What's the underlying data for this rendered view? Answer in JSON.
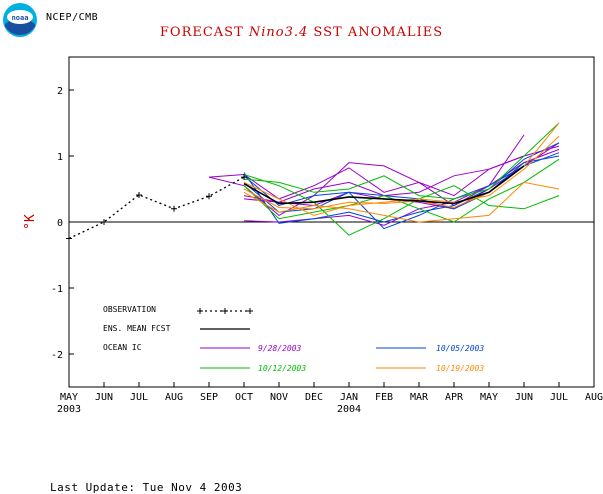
{
  "header": {
    "agency_label": "NCEP/CMB",
    "logo_text": "noaa"
  },
  "title": {
    "prefix": "FORECAST ",
    "italic": "Nino3.4",
    "suffix": " SST ANOMALIES"
  },
  "footer": {
    "last_update": "Last Update: Tue Nov 4 2003"
  },
  "colors": {
    "title": "#cc0000",
    "ylabel": "#cc0000",
    "observation": "#000000",
    "ens_mean": "#000000",
    "ic_0928": "#9900cc",
    "ic_1005": "#0044dd",
    "ic_1012": "#00bb00",
    "ic_1019": "#ff8800"
  },
  "chart_data": {
    "type": "line",
    "title": "FORECAST Nino3.4 SST ANOMALIES",
    "ylabel": "°K",
    "xlabel": "",
    "categories": [
      "MAY",
      "JUN",
      "JUL",
      "AUG",
      "SEP",
      "OCT",
      "NOV",
      "DEC",
      "JAN",
      "FEB",
      "MAR",
      "APR",
      "MAY",
      "JUN",
      "JUL",
      "AUG"
    ],
    "year_labels": [
      {
        "index": 0,
        "label": "2003"
      },
      {
        "index": 8,
        "label": "2004"
      }
    ],
    "ylim": [
      -2.5,
      2.5
    ],
    "yticks": [
      -2,
      -1,
      0,
      1,
      2
    ],
    "ytick_labels": [
      "-2",
      "-1",
      "0",
      "1",
      "2"
    ],
    "zero_line": true,
    "grid": false,
    "legend": {
      "placement": "bottom-left",
      "entries": [
        {
          "label": "OBSERVATION",
          "style": "dotted-cross"
        },
        {
          "label": "ENS. MEAN FCST",
          "style": "solid"
        },
        {
          "label": "OCEAN IC",
          "style": "header"
        },
        {
          "label": "9/28/2003",
          "group": "ic_0928"
        },
        {
          "label": "10/05/2003",
          "group": "ic_1005"
        },
        {
          "label": "10/12/2003",
          "group": "ic_1012"
        },
        {
          "label": "10/19/2003",
          "group": "ic_1019"
        }
      ]
    },
    "observation": {
      "x": [
        0,
        1,
        2,
        3,
        4,
        5
      ],
      "values": [
        -0.25,
        0.0,
        0.41,
        0.2,
        0.39,
        0.68
      ]
    },
    "ens_mean": {
      "x": [
        5,
        6,
        7,
        8,
        9,
        10,
        11,
        12,
        13
      ],
      "values": [
        0.58,
        0.28,
        0.3,
        0.38,
        0.35,
        0.32,
        0.28,
        0.45,
        0.85
      ]
    },
    "members": [
      {
        "group": "ic_0928",
        "x": [
          4,
          5,
          6,
          7,
          8,
          9,
          10,
          11,
          12,
          13
        ],
        "values": [
          0.68,
          0.72,
          0.35,
          0.55,
          0.82,
          0.45,
          0.6,
          0.25,
          0.55,
          1.32
        ]
      },
      {
        "group": "ic_0928",
        "x": [
          4,
          5,
          6,
          7,
          8,
          9,
          10,
          11,
          12,
          13
        ],
        "values": [
          0.68,
          0.55,
          0.1,
          0.4,
          0.9,
          0.85,
          0.6,
          0.4,
          0.8,
          1.0
        ]
      },
      {
        "group": "ic_0928",
        "x": [
          5,
          6,
          7,
          8,
          9,
          10,
          11,
          12,
          13,
          14
        ],
        "values": [
          0.35,
          0.3,
          0.5,
          0.6,
          0.4,
          0.45,
          0.7,
          0.8,
          1.0,
          1.15
        ]
      },
      {
        "group": "ic_0928",
        "x": [
          5,
          6,
          7,
          8,
          9,
          10,
          11,
          12,
          13,
          14
        ],
        "values": [
          0.02,
          0.0,
          0.05,
          0.1,
          -0.05,
          0.2,
          0.3,
          0.55,
          0.9,
          1.1
        ]
      },
      {
        "group": "ic_0928",
        "x": [
          5,
          6,
          7,
          8,
          9,
          10,
          11,
          12,
          13,
          14
        ],
        "values": [
          0.4,
          0.3,
          0.25,
          0.45,
          0.35,
          0.3,
          0.2,
          0.5,
          0.85,
          1.2
        ]
      },
      {
        "group": "ic_1005",
        "x": [
          5,
          6,
          7,
          8,
          9,
          10,
          11,
          12,
          13,
          14
        ],
        "values": [
          0.75,
          -0.02,
          0.05,
          0.15,
          0.0,
          0.15,
          0.25,
          0.5,
          0.95,
          1.2
        ]
      },
      {
        "group": "ic_1005",
        "x": [
          5,
          6,
          7,
          8,
          9,
          10,
          11,
          12,
          13,
          14
        ],
        "values": [
          0.7,
          0.25,
          0.4,
          0.45,
          -0.1,
          0.1,
          0.35,
          0.55,
          0.85,
          1.05
        ]
      },
      {
        "group": "ic_1005",
        "x": [
          5,
          6,
          7,
          8,
          9,
          10,
          11,
          12,
          13,
          14
        ],
        "values": [
          0.6,
          0.15,
          0.2,
          0.45,
          0.4,
          0.35,
          0.2,
          0.45,
          0.9,
          1.0
        ]
      },
      {
        "group": "ic_1012",
        "x": [
          5,
          6,
          7,
          8,
          9,
          10,
          11,
          12,
          13,
          14
        ],
        "values": [
          0.72,
          0.55,
          0.3,
          -0.2,
          0.05,
          0.35,
          0.55,
          0.25,
          0.2,
          0.4
        ]
      },
      {
        "group": "ic_1012",
        "x": [
          5,
          6,
          7,
          8,
          9,
          10,
          11,
          12,
          13,
          14
        ],
        "values": [
          0.55,
          0.05,
          0.15,
          0.25,
          0.4,
          0.2,
          0.0,
          0.35,
          0.6,
          0.95
        ]
      },
      {
        "group": "ic_1012",
        "x": [
          5,
          6,
          7,
          8,
          9,
          10,
          11,
          12,
          13,
          14
        ],
        "values": [
          0.65,
          0.6,
          0.45,
          0.5,
          0.7,
          0.4,
          0.35,
          0.5,
          1.0,
          1.5
        ]
      },
      {
        "group": "ic_1019",
        "x": [
          5,
          6,
          7,
          8,
          9,
          10,
          11,
          12,
          13,
          14
        ],
        "values": [
          0.5,
          0.22,
          0.2,
          0.3,
          0.28,
          0.32,
          0.22,
          0.45,
          0.85,
          1.5
        ]
      },
      {
        "group": "ic_1019",
        "x": [
          5,
          6,
          7,
          8,
          9,
          10,
          11,
          12,
          13,
          14
        ],
        "values": [
          0.45,
          0.15,
          0.25,
          0.2,
          0.1,
          0.0,
          0.05,
          0.1,
          0.6,
          0.5
        ]
      },
      {
        "group": "ic_1019",
        "x": [
          5,
          6,
          7,
          8,
          9,
          10,
          11,
          12,
          13,
          14
        ],
        "values": [
          0.6,
          0.35,
          0.1,
          0.25,
          0.3,
          0.35,
          0.3,
          0.4,
          0.8,
          1.3
        ]
      }
    ]
  }
}
